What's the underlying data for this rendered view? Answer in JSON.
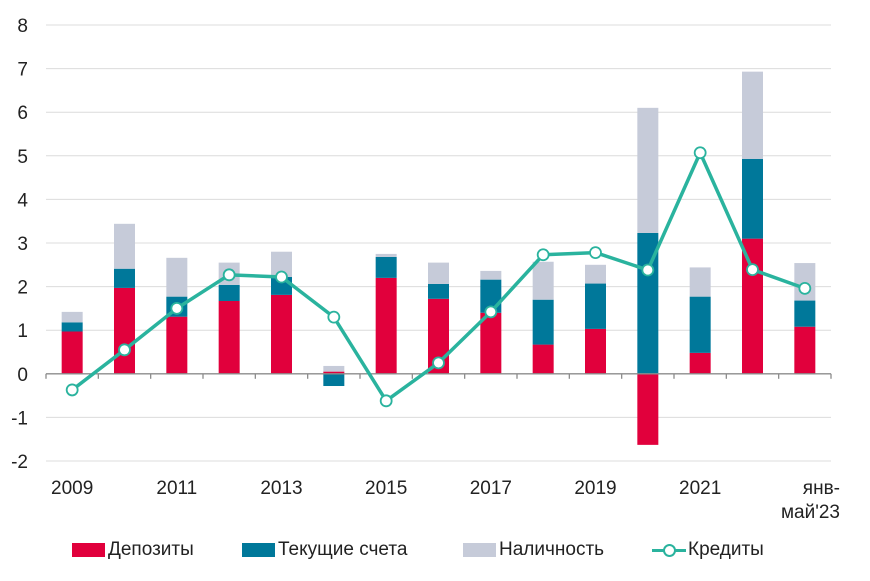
{
  "chart_data": {
    "type": "bar",
    "subtype": "stacked bar with line overlay",
    "title": "",
    "xlabel": "",
    "ylabel": "",
    "ylim": [
      -2,
      8
    ],
    "yticks": [
      8,
      7,
      6,
      5,
      4,
      3,
      2,
      1,
      0,
      -1,
      -2
    ],
    "grid": true,
    "categories": [
      "2009",
      "2010",
      "2011",
      "2012",
      "2013",
      "2014",
      "2015",
      "2016",
      "2017",
      "2018",
      "2019",
      "2020",
      "2021",
      "2022",
      "янв-май'23"
    ],
    "xtick_labels": [
      {
        "index": 0,
        "lines": [
          "2009"
        ]
      },
      {
        "index": 2,
        "lines": [
          "2011"
        ]
      },
      {
        "index": 4,
        "lines": [
          "2013"
        ]
      },
      {
        "index": 6,
        "lines": [
          "2015"
        ]
      },
      {
        "index": 8,
        "lines": [
          "2017"
        ]
      },
      {
        "index": 10,
        "lines": [
          "2019"
        ]
      },
      {
        "index": 12,
        "lines": [
          "2021"
        ]
      },
      {
        "index": 14,
        "lines": [
          "янв-",
          "май'23"
        ]
      }
    ],
    "series": [
      {
        "name": "Депозиты",
        "kind": "bar",
        "color": "#E1003C",
        "values": [
          0.97,
          1.97,
          1.31,
          1.67,
          1.81,
          0.05,
          2.2,
          1.72,
          1.4,
          0.67,
          1.03,
          -1.63,
          0.48,
          3.1,
          1.08
        ]
      },
      {
        "name": "Текущие счета",
        "kind": "bar",
        "color": "#00789A",
        "values": [
          0.21,
          0.44,
          0.46,
          0.37,
          0.41,
          -0.28,
          0.48,
          0.34,
          0.76,
          1.03,
          1.04,
          3.23,
          1.29,
          1.83,
          0.6
        ]
      },
      {
        "name": "Наличность",
        "kind": "bar",
        "color": "#C6CBD9",
        "values": [
          0.24,
          1.03,
          0.89,
          0.51,
          0.58,
          0.13,
          0.07,
          0.49,
          0.2,
          0.87,
          0.43,
          2.87,
          0.67,
          2.0,
          0.86
        ]
      },
      {
        "name": "Кредиты",
        "kind": "line",
        "color": "#2AB39E",
        "values": [
          -0.37,
          0.55,
          1.5,
          2.27,
          2.22,
          1.3,
          -0.62,
          0.25,
          1.42,
          2.73,
          2.78,
          2.38,
          5.07,
          2.39,
          1.96
        ]
      }
    ],
    "legend_position": "bottom"
  },
  "legend": {
    "items": [
      {
        "label": "Депозиты",
        "color": "#E1003C",
        "kind": "bar"
      },
      {
        "label": "Текущие счета",
        "color": "#00789A",
        "kind": "bar"
      },
      {
        "label": "Наличность",
        "color": "#C6CBD9",
        "kind": "bar"
      },
      {
        "label": "Кредиты",
        "color": "#2AB39E",
        "kind": "line"
      }
    ]
  }
}
